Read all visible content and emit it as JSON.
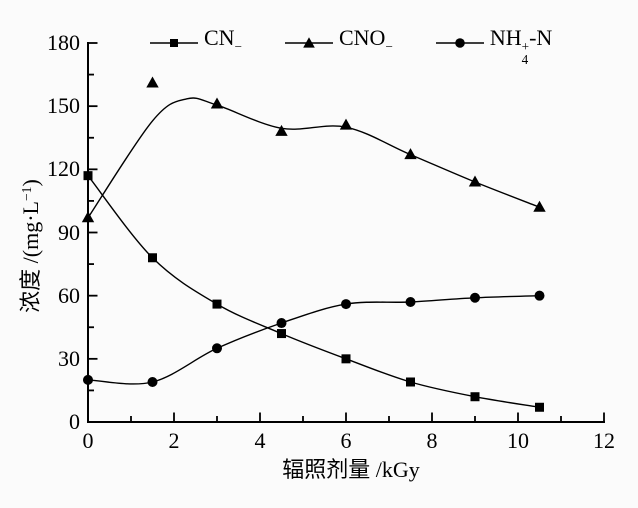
{
  "figure": {
    "background": "#fbfbfb",
    "ink": "#000000"
  },
  "axis_titles": {
    "x": "辐照剂量 /kGy",
    "y_prefix": "浓度 /(mg·L",
    "y_sup": "−1",
    "y_suffix": ")"
  },
  "legend": {
    "items": [
      {
        "prefix": "CN",
        "sup": "−",
        "sub": "",
        "suffix": "",
        "marker": "square"
      },
      {
        "prefix": "CNO",
        "sup": "−",
        "sub": "",
        "suffix": "",
        "marker": "triangle"
      },
      {
        "prefix": "NH",
        "sup": "+",
        "sub": "4",
        "suffix": "-N",
        "marker": "circle"
      }
    ]
  },
  "chart_data": {
    "type": "line",
    "title": "",
    "xlabel": "辐照剂量 /kGy",
    "ylabel": "浓度 /(mg·L⁻¹)",
    "xlim": [
      0,
      12
    ],
    "ylim": [
      0,
      180
    ],
    "xticks": [
      0,
      2,
      4,
      6,
      8,
      10,
      12
    ],
    "yticks": [
      0,
      30,
      60,
      90,
      120,
      150,
      180
    ],
    "x_minor_step": 1,
    "y_minor_step": 15,
    "grid": false,
    "legend_position": "top",
    "x": [
      0,
      1.5,
      3,
      4.5,
      6,
      7.5,
      9,
      10.5
    ],
    "series": [
      {
        "name": "CN−",
        "marker": "square",
        "color": "#000000",
        "values": [
          117,
          78,
          56,
          42,
          30,
          19,
          12,
          7
        ]
      },
      {
        "name": "CNO−",
        "marker": "triangle",
        "color": "#000000",
        "values": [
          97,
          161,
          151,
          138,
          141,
          127,
          114,
          102
        ],
        "trend_curve": {
          "x": [
            0,
            1.5,
            2.3,
            3,
            4.5,
            6,
            7.5,
            9,
            10.5
          ],
          "y": [
            97,
            143,
            153.5,
            150.5,
            139.5,
            140,
            127,
            114,
            102
          ]
        }
      },
      {
        "name": "NH4+-N",
        "marker": "circle",
        "color": "#000000",
        "values": [
          20,
          19,
          35,
          47,
          56,
          57,
          59,
          60
        ]
      }
    ]
  }
}
